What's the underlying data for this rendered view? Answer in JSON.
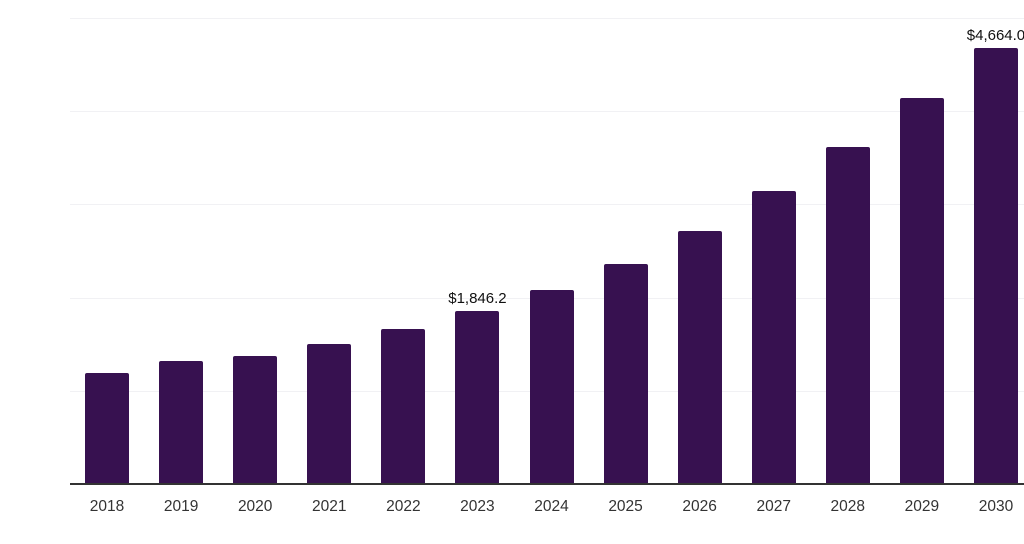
{
  "chart_data": {
    "type": "bar",
    "title": "",
    "categories": [
      "2018",
      "2019",
      "2020",
      "2021",
      "2022",
      "2023",
      "2024",
      "2025",
      "2026",
      "2027",
      "2028",
      "2029",
      "2030"
    ],
    "values": [
      1180,
      1310,
      1365,
      1490,
      1650,
      1846.2,
      2070,
      2350,
      2705,
      3130,
      3605,
      4130,
      4664.0
    ],
    "annotations": [
      {
        "category": "2023",
        "label": "$1,846.2"
      },
      {
        "category": "2030",
        "label": "$4,664.0"
      }
    ],
    "xlabel": "",
    "ylabel": "",
    "ylim": [
      0,
      5000
    ],
    "gridline_step": 1000,
    "grid": "horizontal",
    "legend": "none",
    "colors": {
      "bar": "#371150",
      "gridline": "#f1f1f4",
      "axis_line": "#333333",
      "tick_label": "#333333",
      "data_label": "#111111",
      "background": "#ffffff"
    }
  }
}
